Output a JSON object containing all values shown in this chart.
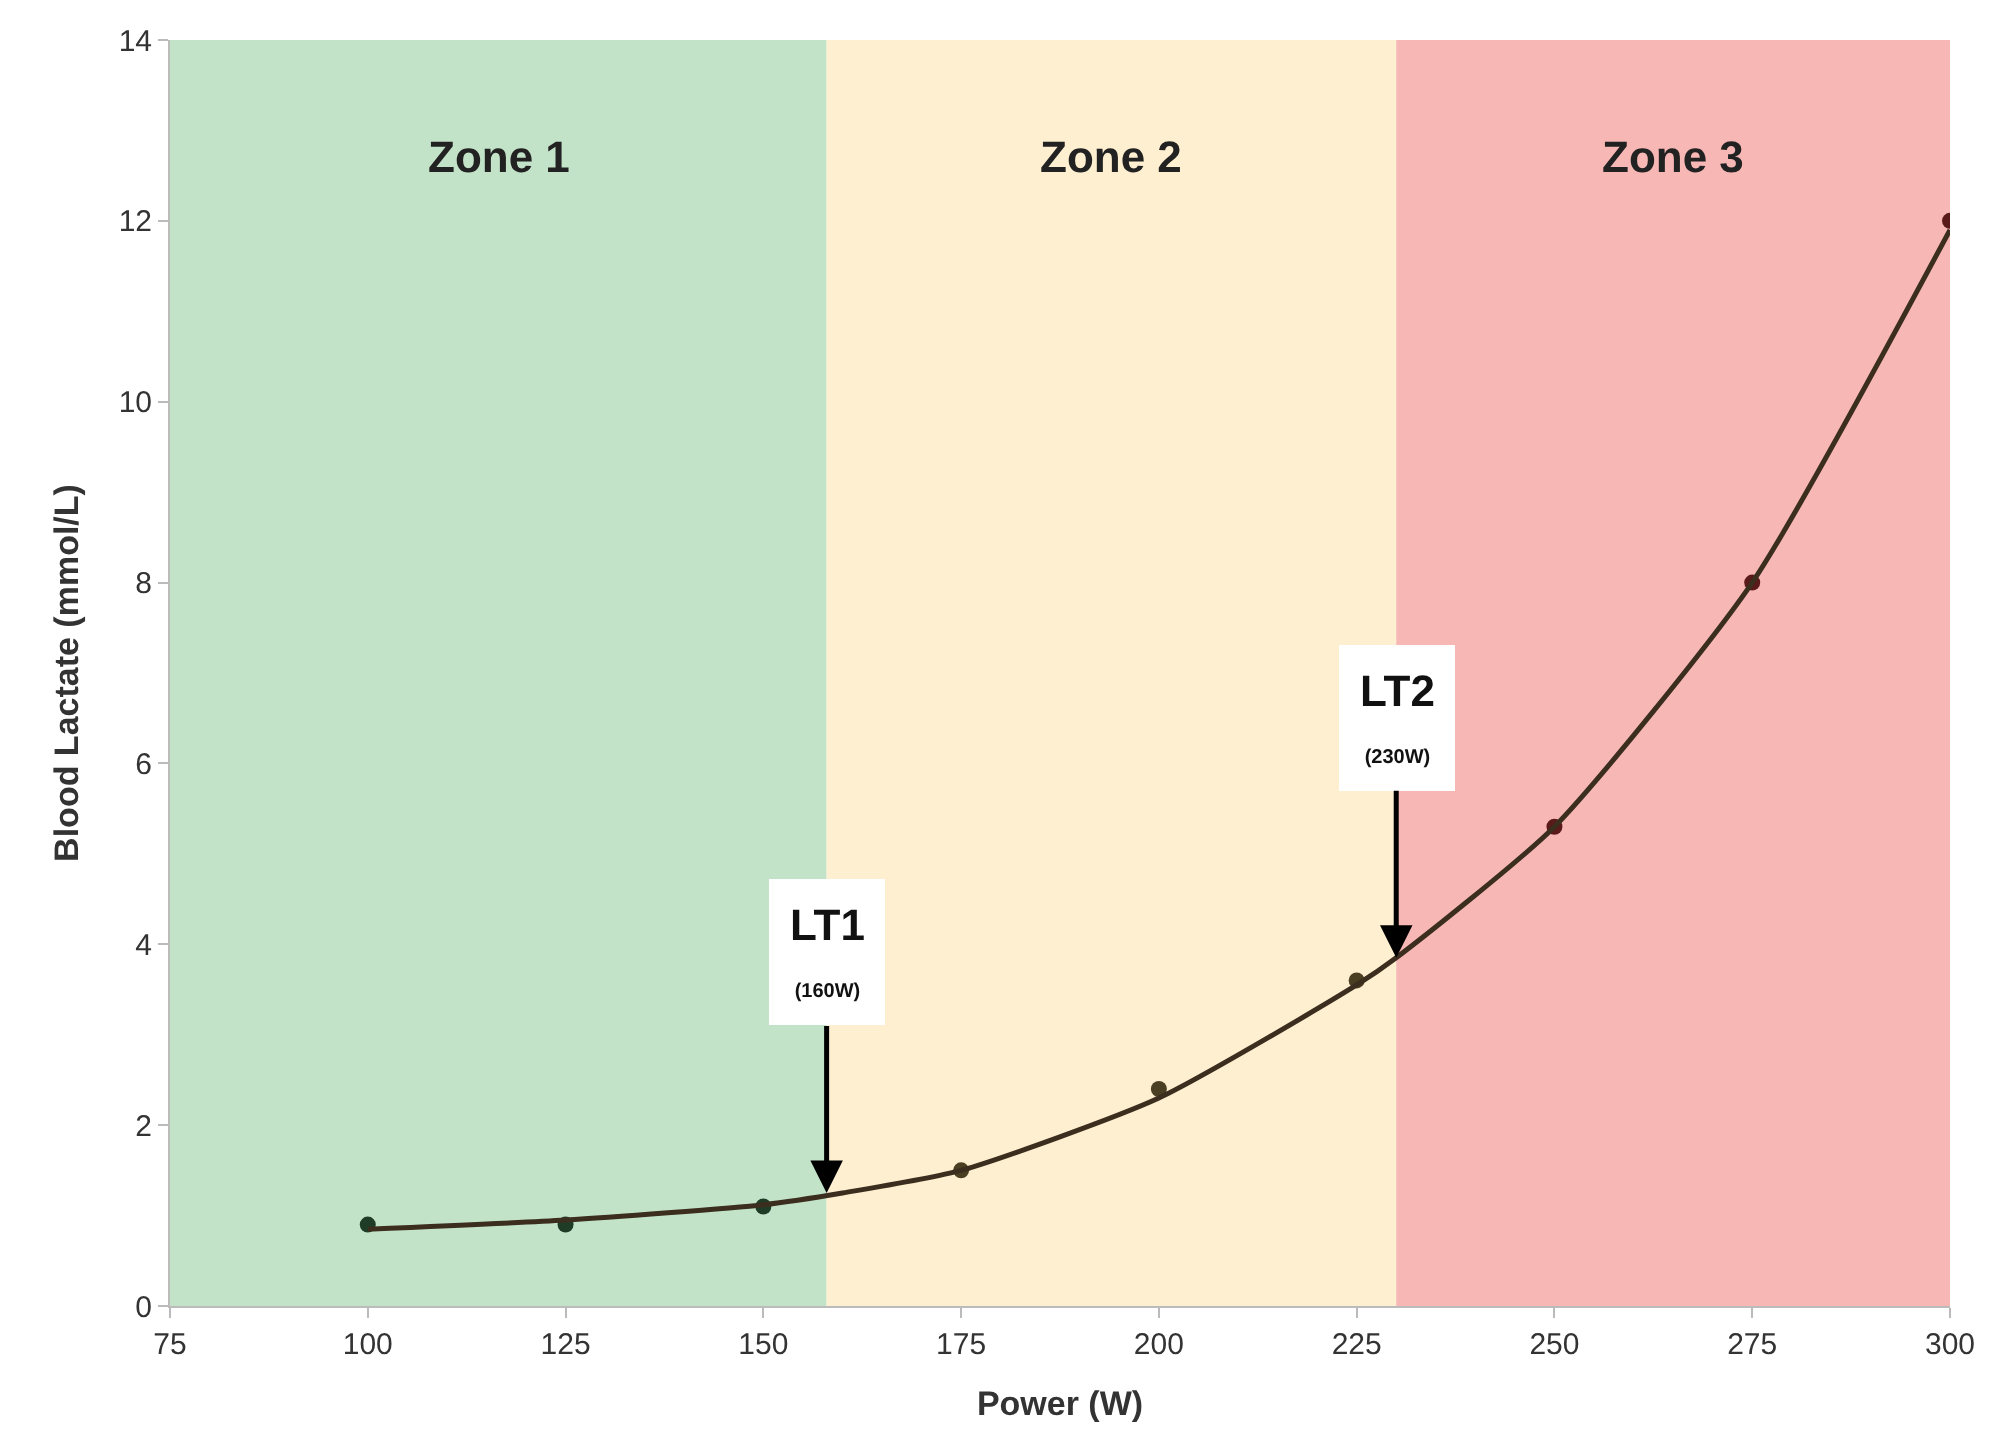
{
  "chart_data": {
    "type": "scatter",
    "xlabel": "Power (W)",
    "ylabel": "Blood Lactate (mmol/L)",
    "xlim": [
      75,
      300
    ],
    "xticks": [
      75,
      100,
      125,
      150,
      175,
      200,
      225,
      250,
      275,
      300
    ],
    "ylim": [
      0,
      14
    ],
    "yticks": [
      0,
      2,
      4,
      6,
      8,
      10,
      12,
      14
    ],
    "grid": false,
    "series": [
      {
        "x": [
          100,
          125,
          150,
          175,
          200,
          225,
          250,
          275,
          300
        ],
        "values": [
          0.9,
          0.9,
          1.1,
          1.5,
          2.4,
          3.6,
          5.3,
          8.0,
          12.0
        ],
        "colors": [
          "#1f3d26",
          "#1f3d26",
          "#1f3d26",
          "#4a3f22",
          "#4a3f22",
          "#4a3f22",
          "#5a1a1a",
          "#5a1a1a",
          "#5a1a1a"
        ],
        "marker": "circle"
      },
      {
        "type": "line",
        "color": "#3b2e1e",
        "x": [
          100,
          125,
          150,
          160,
          175,
          200,
          225,
          230,
          250,
          275,
          300
        ],
        "values": [
          0.85,
          0.95,
          1.12,
          1.25,
          1.5,
          2.3,
          3.55,
          3.85,
          5.3,
          8.0,
          11.9
        ],
        "line_style": "solid",
        "marker": "none"
      }
    ],
    "bands": [
      {
        "axis": "x",
        "from": 75,
        "to": 158,
        "label": "Zone 1",
        "color": "#c3e3c9"
      },
      {
        "axis": "x",
        "from": 158,
        "to": 230,
        "label": "Zone 2",
        "color": "#fdefd0"
      },
      {
        "axis": "x",
        "from": 230,
        "to": 300,
        "label": "Zone 3",
        "color": "#f7b7b5"
      }
    ],
    "annotations": [
      {
        "text": "LT1\n(160W)",
        "x": 158,
        "y": 1.25
      },
      {
        "text": "LT2\n(230W)",
        "x": 230,
        "y": 3.85
      }
    ]
  }
}
